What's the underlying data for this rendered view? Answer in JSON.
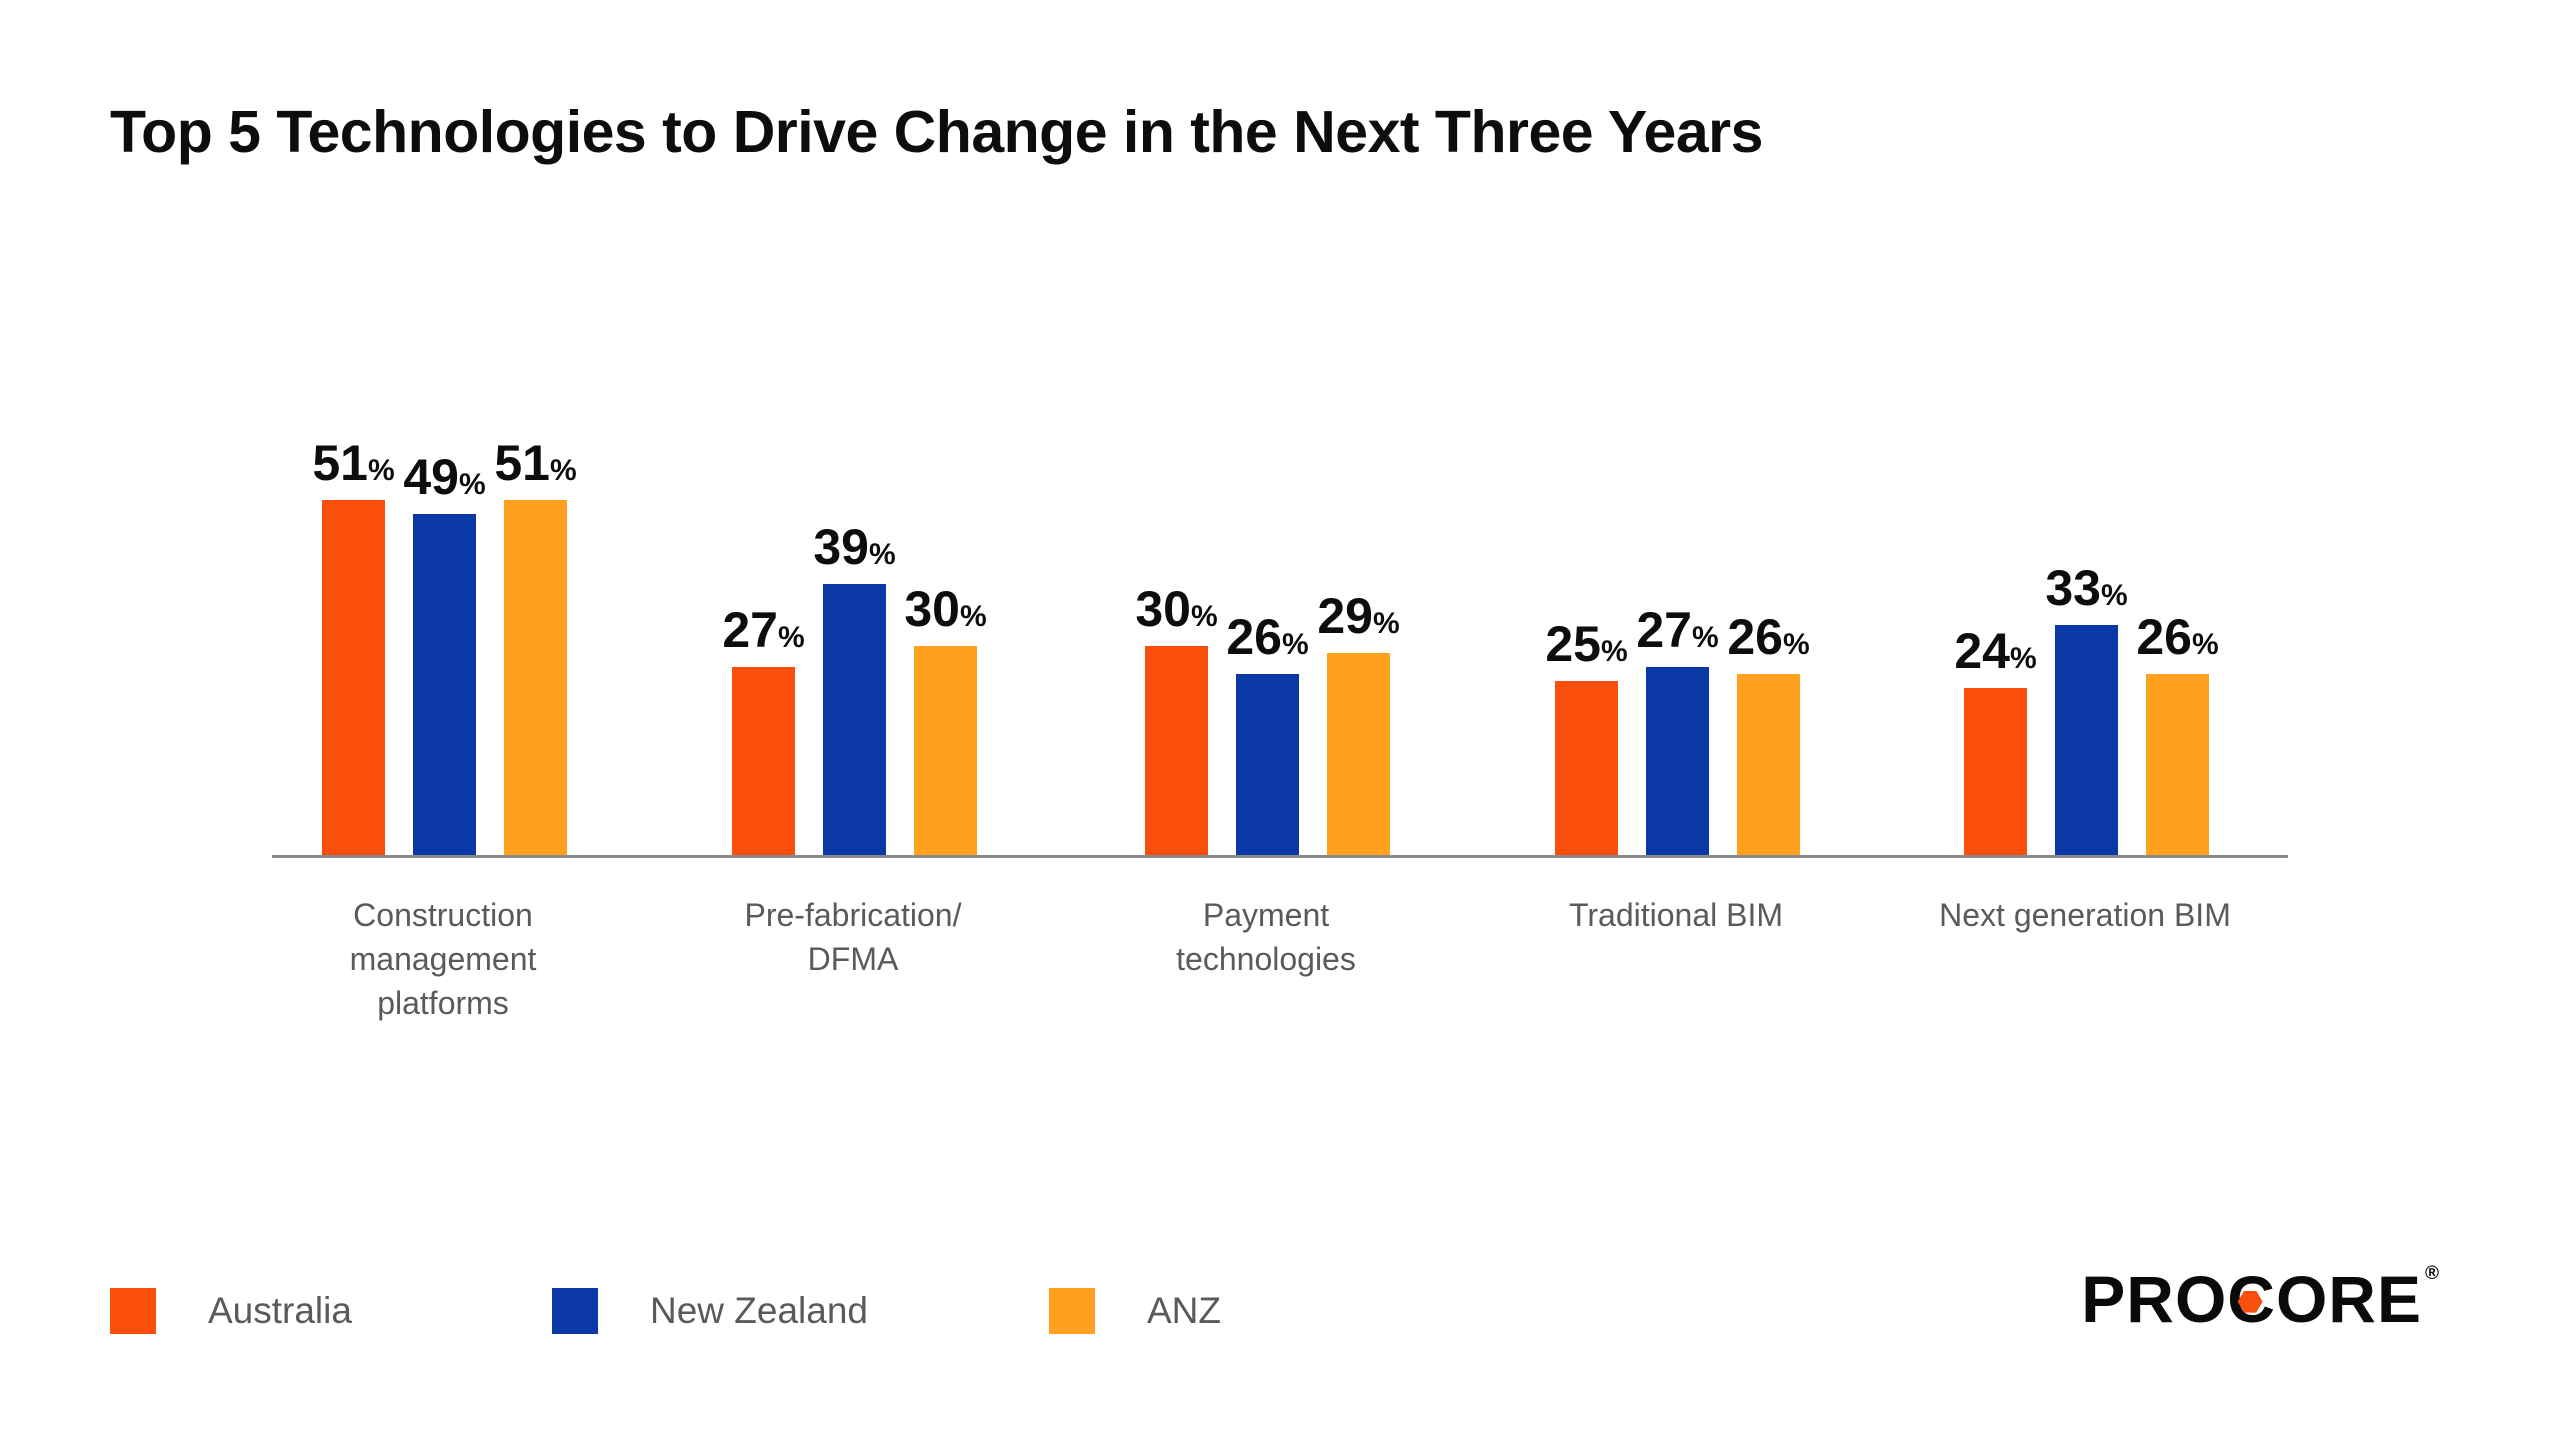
{
  "title": "Top 5 Technologies to Drive Change in the Next Three Years",
  "chart_data": {
    "type": "bar",
    "title": "Top 5 Technologies to Drive Change in the Next Three Years",
    "categories": [
      "Construction management platforms",
      "Pre-fabrication/ DFMA",
      "Payment technologies",
      "Traditional BIM",
      "Next generation BIM"
    ],
    "category_lines": [
      [
        "Construction",
        "management",
        "platforms"
      ],
      [
        "Pre-fabrication/",
        "DFMA"
      ],
      [
        "Payment",
        "technologies"
      ],
      [
        "Traditional BIM"
      ],
      [
        "Next generation BIM"
      ]
    ],
    "series": [
      {
        "name": "Australia",
        "color": "#FA4E0C",
        "values": [
          51,
          27,
          30,
          25,
          24
        ]
      },
      {
        "name": "New Zealand",
        "color": "#0A38A5",
        "values": [
          49,
          39,
          26,
          27,
          33
        ]
      },
      {
        "name": "ANZ",
        "color": "#FFA11E",
        "values": [
          51,
          30,
          29,
          26,
          26
        ]
      }
    ],
    "value_suffix": "%",
    "xlabel": "",
    "ylabel": "",
    "ylim": [
      0,
      55
    ],
    "grid": false,
    "legend_position": "bottom-left",
    "data_labels": true
  },
  "branding": {
    "logo_prefix": "PRO",
    "logo_c": "C",
    "logo_suffix": "ORE",
    "registered": "®",
    "hexagon_color": "#FA4E0C",
    "logo_color": "#0a0a0a"
  }
}
